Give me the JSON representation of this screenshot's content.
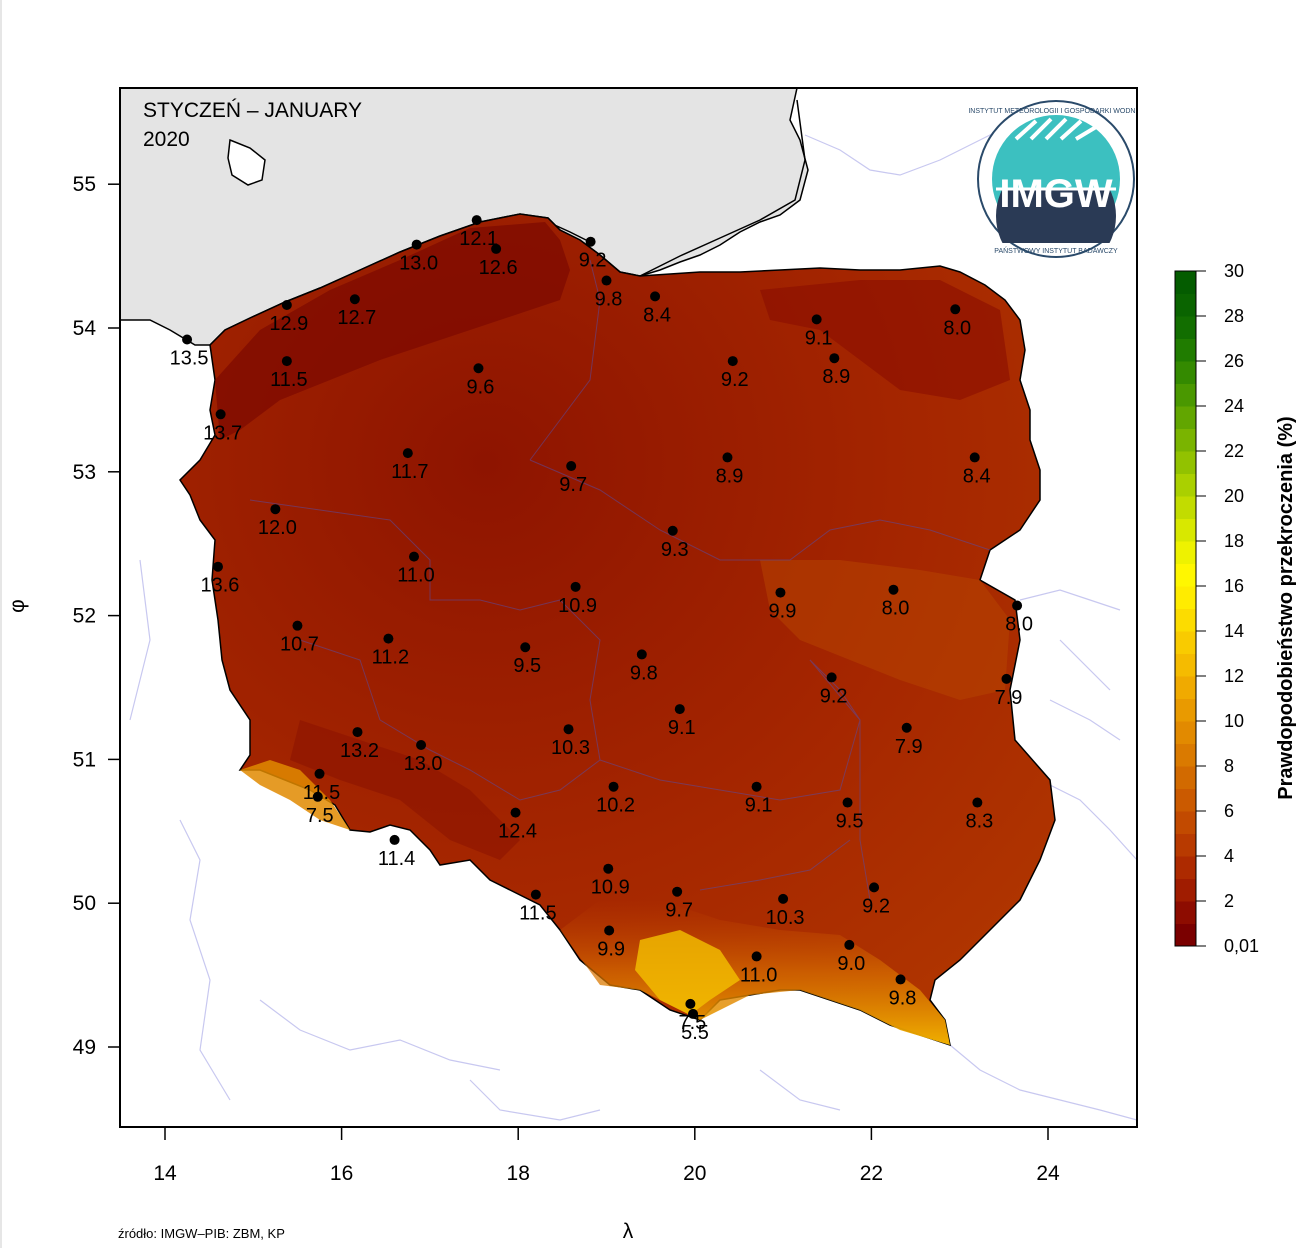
{
  "map": {
    "title_line1": "STYCZEŃ – JANUARY",
    "title_line2": "2020",
    "x_axis_label": "λ",
    "y_axis_label": "φ",
    "x_ticks": [
      "14",
      "16",
      "18",
      "20",
      "22",
      "24"
    ],
    "y_ticks": [
      "49",
      "50",
      "51",
      "52",
      "53",
      "54",
      "55"
    ],
    "source": "źródło: IMGW–PIB: ZBM, KP"
  },
  "logo": {
    "text": "IMGW",
    "ring_text_top": "INSTYTUT METEOROLOGII I GOSPODARKI WODNEJ",
    "ring_text_bottom": "PAŃSTWOWY INSTYTUT BADAWCZY"
  },
  "legend": {
    "title": "Prawdopodobieństwo przekroczenia (%)",
    "tick_labels": [
      "30",
      "28",
      "26",
      "24",
      "22",
      "20",
      "18",
      "16",
      "14",
      "12",
      "10",
      "8",
      "6",
      "4",
      "2",
      "0,01"
    ],
    "colors": [
      "#7a0000",
      "#8d0c00",
      "#a01c00",
      "#ad2a00",
      "#b83a00",
      "#c24a00",
      "#cb5a00",
      "#d26a00",
      "#da7a00",
      "#e28a00",
      "#e99a00",
      "#f0aa00",
      "#f5bb00",
      "#f9cb00",
      "#fcdc00",
      "#ffec00",
      "#fff700",
      "#eef200",
      "#d8e800",
      "#c2dc00",
      "#aad000",
      "#92c200",
      "#7ab400",
      "#62a600",
      "#4a9800",
      "#348a00",
      "#207c00",
      "#126e00",
      "#0a6400",
      "#045c00"
    ]
  },
  "stations": [
    {
      "value": "12.1",
      "lon": 17.53,
      "lat": 54.75
    },
    {
      "value": "12.6",
      "lon": 17.75,
      "lat": 54.55
    },
    {
      "value": "13.0",
      "lon": 16.85,
      "lat": 54.58
    },
    {
      "value": "9.2",
      "lon": 18.82,
      "lat": 54.6
    },
    {
      "value": "9.8",
      "lon": 19.0,
      "lat": 54.33
    },
    {
      "value": "8.4",
      "lon": 19.55,
      "lat": 54.22
    },
    {
      "value": "12.9",
      "lon": 15.38,
      "lat": 54.16
    },
    {
      "value": "12.7",
      "lon": 16.15,
      "lat": 54.2
    },
    {
      "value": "13.5",
      "lon": 14.25,
      "lat": 53.92
    },
    {
      "value": "11.5",
      "lon": 15.38,
      "lat": 53.77
    },
    {
      "value": "9.6",
      "lon": 17.55,
      "lat": 53.72
    },
    {
      "value": "9.1",
      "lon": 21.38,
      "lat": 54.06
    },
    {
      "value": "8.0",
      "lon": 22.95,
      "lat": 54.13
    },
    {
      "value": "9.2",
      "lon": 20.43,
      "lat": 53.77
    },
    {
      "value": "8.9",
      "lon": 21.58,
      "lat": 53.79
    },
    {
      "value": "13.7",
      "lon": 14.63,
      "lat": 53.4
    },
    {
      "value": "11.7",
      "lon": 16.75,
      "lat": 53.13
    },
    {
      "value": "9.7",
      "lon": 18.6,
      "lat": 53.04
    },
    {
      "value": "8.9",
      "lon": 20.37,
      "lat": 53.1
    },
    {
      "value": "8.4",
      "lon": 23.17,
      "lat": 53.1
    },
    {
      "value": "12.0",
      "lon": 15.25,
      "lat": 52.74
    },
    {
      "value": "9.3",
      "lon": 19.75,
      "lat": 52.59
    },
    {
      "value": "13.6",
      "lon": 14.6,
      "lat": 52.34
    },
    {
      "value": "11.0",
      "lon": 16.82,
      "lat": 52.41
    },
    {
      "value": "10.9",
      "lon": 18.65,
      "lat": 52.2
    },
    {
      "value": "9.9",
      "lon": 20.97,
      "lat": 52.16
    },
    {
      "value": "8.0",
      "lon": 22.25,
      "lat": 52.18
    },
    {
      "value": "8.0",
      "lon": 23.65,
      "lat": 52.07
    },
    {
      "value": "10.7",
      "lon": 15.5,
      "lat": 51.93
    },
    {
      "value": "11.2",
      "lon": 16.53,
      "lat": 51.84
    },
    {
      "value": "9.5",
      "lon": 18.08,
      "lat": 51.78
    },
    {
      "value": "9.8",
      "lon": 19.4,
      "lat": 51.73
    },
    {
      "value": "9.2",
      "lon": 21.55,
      "lat": 51.57
    },
    {
      "value": "7.9",
      "lon": 23.53,
      "lat": 51.56
    },
    {
      "value": "9.1",
      "lon": 19.83,
      "lat": 51.35
    },
    {
      "value": "10.3",
      "lon": 18.57,
      "lat": 51.21
    },
    {
      "value": "7.9",
      "lon": 22.4,
      "lat": 51.22
    },
    {
      "value": "13.2",
      "lon": 16.18,
      "lat": 51.19
    },
    {
      "value": "13.0",
      "lon": 16.9,
      "lat": 51.1
    },
    {
      "value": "11.5",
      "lon": 15.75,
      "lat": 50.9
    },
    {
      "value": "7.5",
      "lon": 15.73,
      "lat": 50.74
    },
    {
      "value": "10.2",
      "lon": 19.08,
      "lat": 50.81
    },
    {
      "value": "9.1",
      "lon": 20.7,
      "lat": 50.81
    },
    {
      "value": "9.5",
      "lon": 21.73,
      "lat": 50.7
    },
    {
      "value": "8.3",
      "lon": 23.2,
      "lat": 50.7
    },
    {
      "value": "12.4",
      "lon": 17.97,
      "lat": 50.63
    },
    {
      "value": "11.4",
      "lon": 16.6,
      "lat": 50.44
    },
    {
      "value": "10.9",
      "lon": 19.02,
      "lat": 50.24
    },
    {
      "value": "9.7",
      "lon": 19.8,
      "lat": 50.08
    },
    {
      "value": "10.3",
      "lon": 21.0,
      "lat": 50.03
    },
    {
      "value": "9.2",
      "lon": 22.03,
      "lat": 50.11
    },
    {
      "value": "11.5",
      "lon": 18.2,
      "lat": 50.06
    },
    {
      "value": "9.9",
      "lon": 19.03,
      "lat": 49.81
    },
    {
      "value": "11.0",
      "lon": 20.7,
      "lat": 49.63
    },
    {
      "value": "9.0",
      "lon": 21.75,
      "lat": 49.71
    },
    {
      "value": "9.8",
      "lon": 22.33,
      "lat": 49.47
    },
    {
      "value": "7.5",
      "lon": 19.95,
      "lat": 49.3
    },
    {
      "value": "5.5",
      "lon": 19.98,
      "lat": 49.23
    }
  ]
}
